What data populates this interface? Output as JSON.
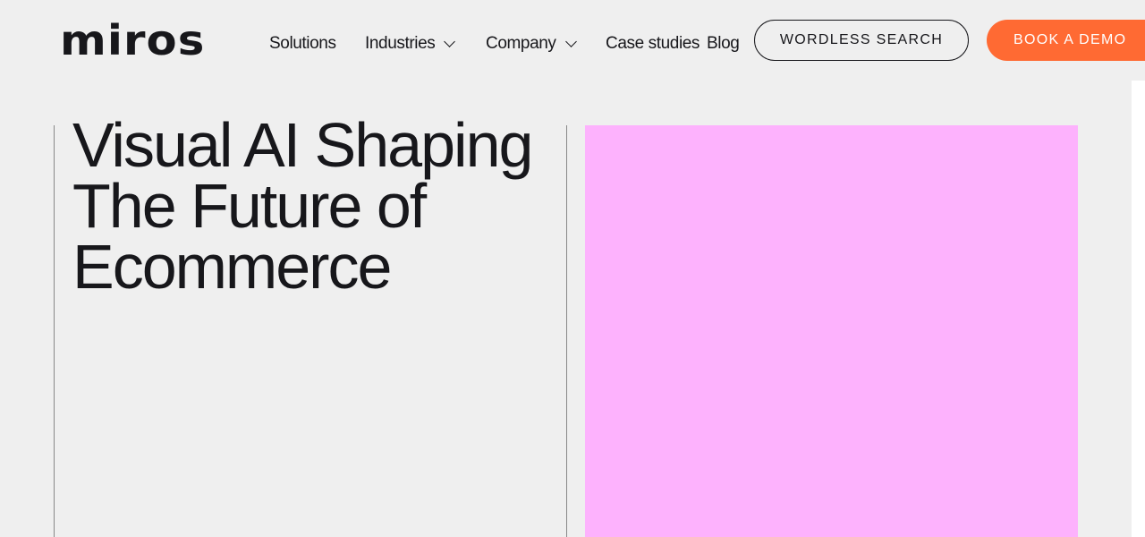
{
  "header": {
    "logo": "miros",
    "nav": [
      {
        "label": "Solutions"
      },
      {
        "label": "Industries",
        "has_dropdown": true
      },
      {
        "label": "Company",
        "has_dropdown": true
      },
      {
        "label": "Case studies"
      },
      {
        "label": "Blog"
      }
    ],
    "wordless_search": "WORDLESS SEARCH",
    "book_demo": "BOOK A DEMO"
  },
  "hero": {
    "title": "Visual AI Shaping The Future of Ecommerce",
    "media_color": "#fdb2fd"
  },
  "colors": {
    "accent": "#ff6a33",
    "text": "#17171b",
    "background": "#efefef"
  }
}
